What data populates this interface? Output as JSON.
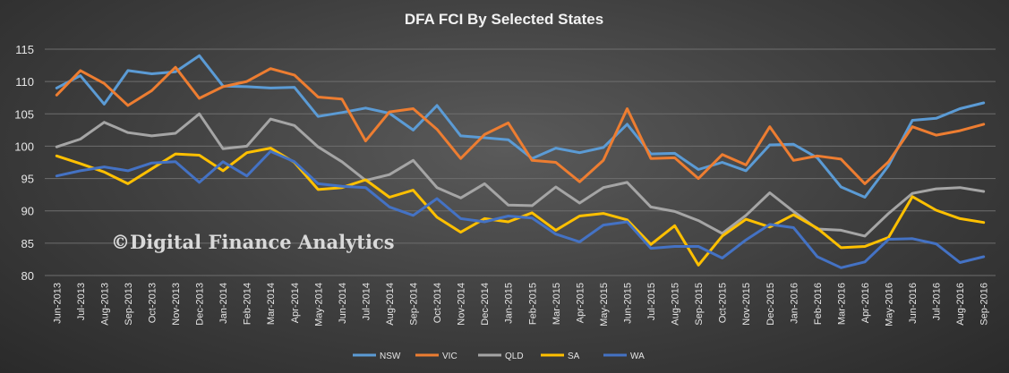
{
  "chart_data": {
    "type": "line",
    "title": "DFA FCI By Selected States",
    "watermark": "©Digital Finance Analytics",
    "ylim": [
      80,
      115
    ],
    "yticks": [
      80,
      85,
      90,
      95,
      100,
      105,
      110,
      115
    ],
    "grid": true,
    "legend_position": "bottom",
    "categories": [
      "Jun-2013",
      "Jul-2013",
      "Aug-2013",
      "Sep-2013",
      "Oct-2013",
      "Nov-2013",
      "Dec-2013",
      "Jan-2014",
      "Feb-2014",
      "Mar-2014",
      "Apr-2014",
      "May-2014",
      "Jun-2014",
      "Jul-2014",
      "Aug-2014",
      "Sep-2014",
      "Oct-2014",
      "Nov-2014",
      "Dec-2014",
      "Jan-2015",
      "Feb-2015",
      "Mar-2015",
      "Apr-2015",
      "May-2015",
      "Jun-2015",
      "Jul-2015",
      "Aug-2015",
      "Sep-2015",
      "Oct-2015",
      "Nov-2015",
      "Dec-2015",
      "Jan-2016",
      "Feb-2016",
      "Mar-2016",
      "Apr-2016",
      "May-2016",
      "Jun-2016",
      "Jul-2016",
      "Aug-2016",
      "Sep-2016"
    ],
    "series": [
      {
        "name": "NSW",
        "color": "#5b9bd5",
        "values": [
          109.0,
          110.9,
          106.5,
          111.7,
          111.2,
          111.5,
          114.0,
          109.3,
          109.2,
          109.0,
          109.1,
          104.6,
          105.2,
          105.9,
          105.1,
          102.5,
          106.3,
          101.6,
          101.3,
          101.0,
          98.1,
          99.7,
          99.0,
          99.8,
          103.4,
          98.8,
          98.9,
          96.4,
          97.5,
          96.2,
          100.2,
          100.3,
          98.2,
          93.7,
          92.1,
          97.0,
          104.0,
          104.3,
          105.8,
          106.7
        ]
      },
      {
        "name": "VIC",
        "color": "#ed7d31",
        "values": [
          107.9,
          111.7,
          109.7,
          106.3,
          108.6,
          112.2,
          107.4,
          109.2,
          110.0,
          112.0,
          111.0,
          107.6,
          107.3,
          100.8,
          105.3,
          105.8,
          102.6,
          98.1,
          101.8,
          103.6,
          97.8,
          97.5,
          94.5,
          97.8,
          105.8,
          98.1,
          98.2,
          95.0,
          98.7,
          97.1,
          103.0,
          97.8,
          98.5,
          98.0,
          94.2,
          97.6,
          103.0,
          101.7,
          102.4,
          103.4
        ]
      },
      {
        "name": "QLD",
        "color": "#a5a5a5",
        "values": [
          99.9,
          101.1,
          103.7,
          102.1,
          101.6,
          102.0,
          105.0,
          99.6,
          100.0,
          104.2,
          103.2,
          99.9,
          97.6,
          94.7,
          95.6,
          97.8,
          93.6,
          92.0,
          94.2,
          90.9,
          90.8,
          93.7,
          91.2,
          93.6,
          94.4,
          90.6,
          89.9,
          88.5,
          86.5,
          89.3,
          92.8,
          89.9,
          87.2,
          87.0,
          86.1,
          89.6,
          92.7,
          93.4,
          93.6,
          93.0
        ]
      },
      {
        "name": "SA",
        "color": "#ffc000",
        "values": [
          98.5,
          97.3,
          96.0,
          94.2,
          96.5,
          98.8,
          98.6,
          96.2,
          99.0,
          99.7,
          97.5,
          93.3,
          93.6,
          94.8,
          92.1,
          93.2,
          89.0,
          86.7,
          88.8,
          88.3,
          89.7,
          87.0,
          89.2,
          89.6,
          88.6,
          84.8,
          87.7,
          81.6,
          86.1,
          88.7,
          87.5,
          89.4,
          87.3,
          84.3,
          84.5,
          85.9,
          92.2,
          90.1,
          88.8,
          88.2
        ]
      },
      {
        "name": "WA",
        "color": "#4472c4",
        "values": [
          95.4,
          96.2,
          96.8,
          96.2,
          97.4,
          97.6,
          94.4,
          97.6,
          95.4,
          99.2,
          97.6,
          94.2,
          93.8,
          93.6,
          90.6,
          89.3,
          91.9,
          88.8,
          88.3,
          89.2,
          88.9,
          86.4,
          85.2,
          87.8,
          88.3,
          84.2,
          84.5,
          84.5,
          82.7,
          85.5,
          87.9,
          87.4,
          82.9,
          81.2,
          82.1,
          85.6,
          85.7,
          84.9,
          82.0,
          82.9
        ]
      }
    ]
  }
}
